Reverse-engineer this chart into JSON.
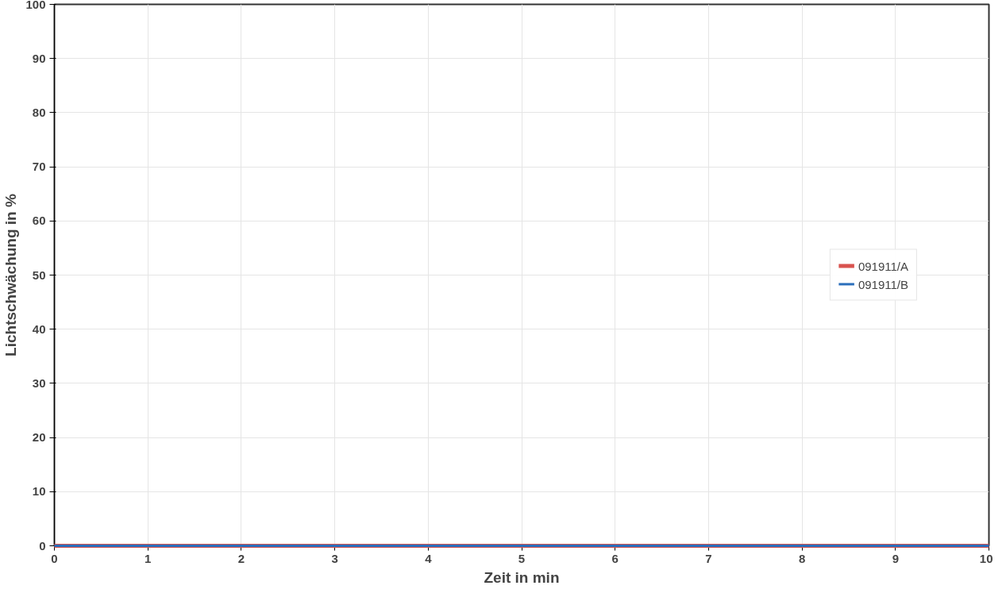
{
  "chart_data": {
    "type": "line",
    "xlabel": "Zeit in min",
    "ylabel": "Lichtschwächung in %",
    "x": [
      0,
      10
    ],
    "xlim": [
      0,
      10
    ],
    "ylim": [
      0,
      100
    ],
    "xticks": [
      0,
      1,
      2,
      3,
      4,
      5,
      6,
      7,
      8,
      9,
      10
    ],
    "yticks": [
      0,
      10,
      20,
      30,
      40,
      50,
      60,
      70,
      80,
      90,
      100
    ],
    "grid": true,
    "legend": "right",
    "marker": "none",
    "line_style": "solid",
    "series": [
      {
        "name": "091911/A",
        "color": "#d9534f",
        "values": [
          0,
          0
        ]
      },
      {
        "name": "091911/B",
        "color": "#2a6ebb",
        "values": [
          0,
          0
        ]
      }
    ]
  }
}
